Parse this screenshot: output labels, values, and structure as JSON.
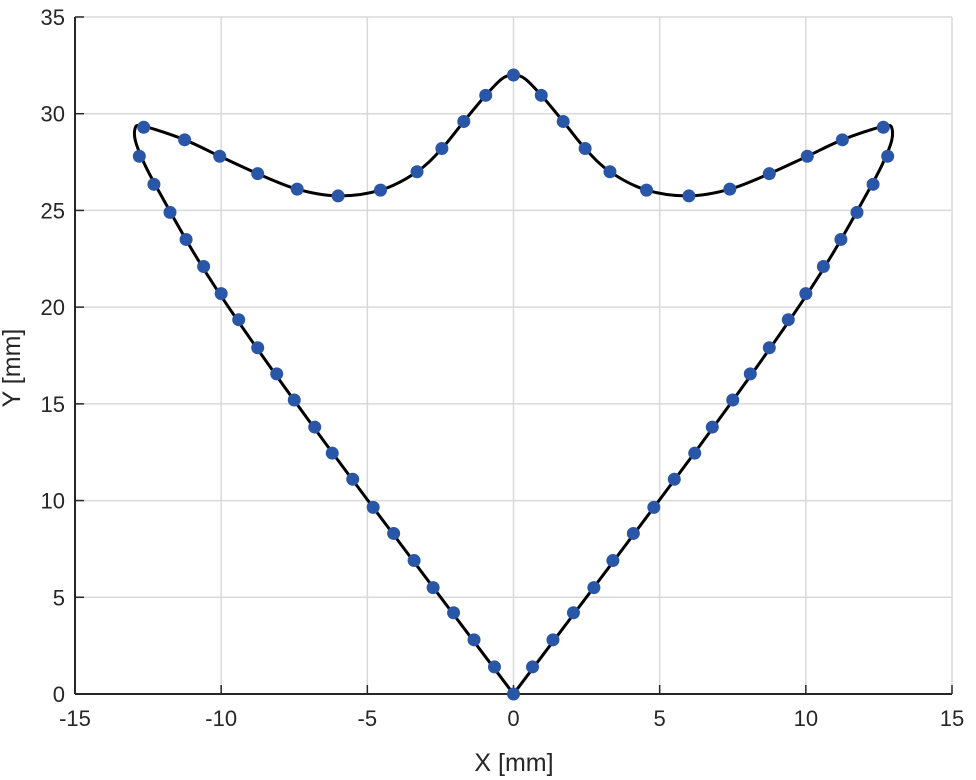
{
  "chart_data": {
    "type": "scatter",
    "title": "",
    "xlabel": "X [mm]",
    "ylabel": "Y [mm]",
    "xlim": [
      -15,
      15
    ],
    "ylim": [
      0,
      35
    ],
    "xticks": [
      -15,
      -10,
      -5,
      0,
      5,
      10,
      15
    ],
    "yticks": [
      0,
      5,
      10,
      15,
      20,
      25,
      30,
      35
    ],
    "xtick_labels": [
      "-15",
      "-10",
      "-5",
      "0",
      "5",
      "10",
      "15"
    ],
    "ytick_labels": [
      "0",
      "5",
      "10",
      "15",
      "20",
      "25",
      "30",
      "35"
    ],
    "grid": true,
    "colors": {
      "marker": "#2a56a8",
      "curve": "#000000",
      "grid": "#d9d9d9",
      "axis": "#262626"
    },
    "series": [
      {
        "style": "markers",
        "points": [
          [
            0,
            0
          ],
          [
            0.65,
            1.4
          ],
          [
            1.35,
            2.8
          ],
          [
            2.05,
            4.2
          ],
          [
            2.75,
            5.5
          ],
          [
            3.4,
            6.9
          ],
          [
            4.1,
            8.3
          ],
          [
            4.8,
            9.65
          ],
          [
            5.5,
            11.1
          ],
          [
            6.2,
            12.45
          ],
          [
            6.8,
            13.8
          ],
          [
            7.5,
            15.2
          ],
          [
            8.1,
            16.55
          ],
          [
            8.75,
            17.9
          ],
          [
            9.4,
            19.35
          ],
          [
            10.0,
            20.7
          ],
          [
            10.6,
            22.1
          ],
          [
            11.2,
            23.5
          ],
          [
            11.75,
            24.9
          ],
          [
            12.3,
            26.35
          ],
          [
            12.8,
            27.8
          ],
          [
            12.65,
            29.3
          ],
          [
            11.25,
            28.65
          ],
          [
            10.05,
            27.8
          ],
          [
            8.75,
            26.9
          ],
          [
            7.4,
            26.1
          ],
          [
            6.0,
            25.75
          ],
          [
            4.55,
            26.05
          ],
          [
            3.3,
            27.0
          ],
          [
            2.45,
            28.2
          ],
          [
            1.7,
            29.6
          ],
          [
            0.95,
            30.95
          ],
          [
            0,
            32.0
          ],
          [
            -0.95,
            30.95
          ],
          [
            -1.7,
            29.6
          ],
          [
            -2.45,
            28.2
          ],
          [
            -3.3,
            27.0
          ],
          [
            -4.55,
            26.05
          ],
          [
            -6.0,
            25.75
          ],
          [
            -7.4,
            26.1
          ],
          [
            -8.75,
            26.9
          ],
          [
            -10.05,
            27.8
          ],
          [
            -11.25,
            28.65
          ],
          [
            -12.65,
            29.3
          ],
          [
            -12.8,
            27.8
          ],
          [
            -12.3,
            26.35
          ],
          [
            -11.75,
            24.9
          ],
          [
            -11.2,
            23.5
          ],
          [
            -10.6,
            22.1
          ],
          [
            -10.0,
            20.7
          ],
          [
            -9.4,
            19.35
          ],
          [
            -8.75,
            17.9
          ],
          [
            -8.1,
            16.55
          ],
          [
            -7.5,
            15.2
          ],
          [
            -6.8,
            13.8
          ],
          [
            -6.2,
            12.45
          ],
          [
            -5.5,
            11.1
          ],
          [
            -4.8,
            9.65
          ],
          [
            -4.1,
            8.3
          ],
          [
            -3.4,
            6.9
          ],
          [
            -2.75,
            5.5
          ],
          [
            -2.05,
            4.2
          ],
          [
            -1.35,
            2.8
          ],
          [
            -0.65,
            1.4
          ]
        ]
      },
      {
        "style": "line",
        "points": [
          [
            0,
            0
          ],
          [
            6.5,
            13.1
          ],
          [
            10.1,
            20.8
          ],
          [
            12.1,
            25.9
          ],
          [
            12.85,
            28.2
          ],
          [
            12.95,
            29.2
          ],
          [
            12.65,
            29.35
          ],
          [
            11.25,
            28.65
          ],
          [
            10.05,
            27.8
          ],
          [
            8.75,
            26.9
          ],
          [
            7.4,
            26.1
          ],
          [
            6.0,
            25.75
          ],
          [
            4.55,
            26.05
          ],
          [
            3.3,
            27.0
          ],
          [
            2.45,
            28.2
          ],
          [
            1.7,
            29.6
          ],
          [
            0.95,
            30.95
          ],
          [
            0.4,
            31.8
          ],
          [
            0,
            32.0
          ],
          [
            -0.4,
            31.8
          ],
          [
            -0.95,
            30.95
          ],
          [
            -1.7,
            29.6
          ],
          [
            -2.45,
            28.2
          ],
          [
            -3.3,
            27.0
          ],
          [
            -4.55,
            26.05
          ],
          [
            -6.0,
            25.75
          ],
          [
            -7.4,
            26.1
          ],
          [
            -8.75,
            26.9
          ],
          [
            -10.05,
            27.8
          ],
          [
            -11.25,
            28.65
          ],
          [
            -12.65,
            29.35
          ],
          [
            -12.95,
            29.2
          ],
          [
            -12.85,
            28.2
          ],
          [
            -12.1,
            25.9
          ],
          [
            -10.1,
            20.8
          ],
          [
            -6.5,
            13.1
          ],
          [
            0,
            0
          ]
        ]
      }
    ]
  }
}
